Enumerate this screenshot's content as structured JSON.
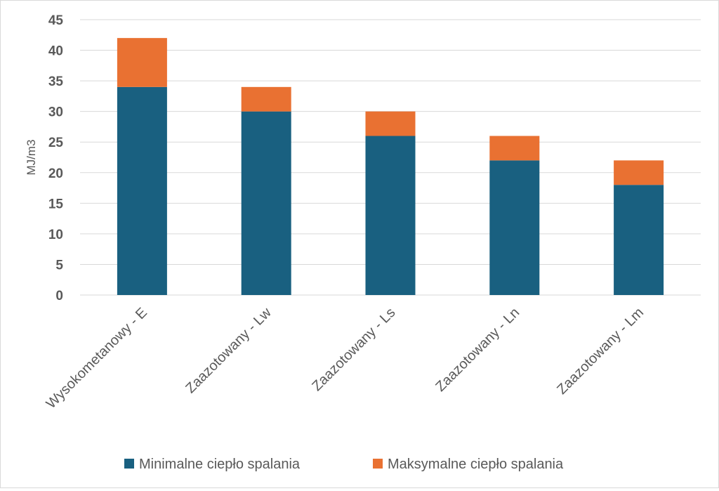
{
  "chart_data": {
    "type": "bar",
    "stacked": true,
    "title": "",
    "xlabel": "",
    "ylabel": "MJ/m3",
    "ylim": [
      0,
      45
    ],
    "yticks": [
      0,
      5,
      10,
      15,
      20,
      25,
      30,
      35,
      40,
      45
    ],
    "grid": true,
    "legend_position": "bottom",
    "categories": [
      "Wysokometanowy - E",
      "Zaazotowany - Lw",
      "Zaazotowany - Ls",
      "Zaazotowany - Ln",
      "Zaazotowany - Lm"
    ],
    "series": [
      {
        "name": "Minimalne ciepło spalania",
        "color": "#196080",
        "values": [
          34,
          30,
          26,
          22,
          18
        ]
      },
      {
        "name": "Maksymalne ciepło spalania",
        "color": "#E97132",
        "values": [
          8,
          4,
          4,
          4,
          4
        ]
      }
    ]
  }
}
